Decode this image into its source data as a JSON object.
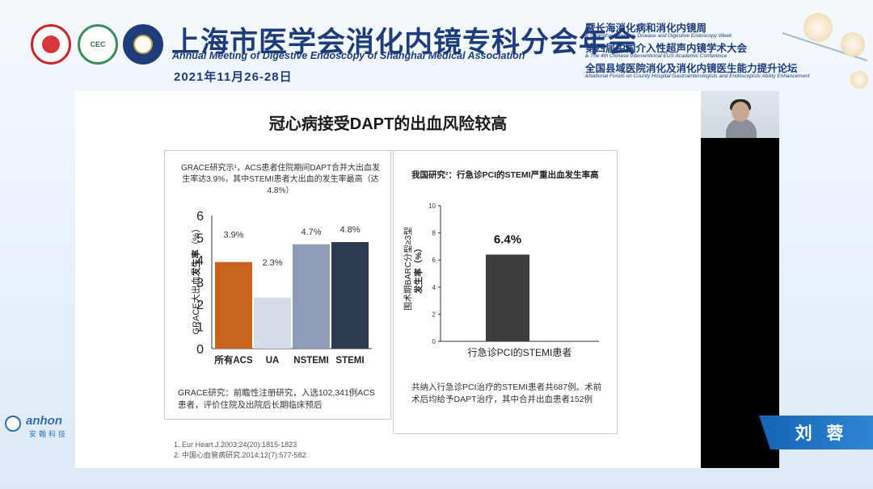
{
  "header": {
    "title_cn": "上海市医学会消化内镜专科分会年会",
    "title_en": "Annual Meeting of Digestive Endoscopy of Shanghai Medical Association",
    "date": "2021年11月26-28日",
    "logo2_text": "CEC",
    "right_lines": [
      {
        "text": "暨长海消化病和消化内镜周",
        "style": "big"
      },
      {
        "text": "& Changhai Digestive Disease and Digestive Endoscopy Week",
        "style": "small"
      },
      {
        "text": "第四届中国介入性超声内镜学术大会",
        "style": "big"
      },
      {
        "text": "& The 4th Chinese Interventional EUS Academic Conference",
        "style": "small"
      },
      {
        "text": "全国县域医院消化及消化内镜医生能力提升论坛",
        "style": "big"
      },
      {
        "text": "&National Forum on County Hospital Gastroenterologists and Endoscopists Ability Enhancement",
        "style": "small"
      }
    ]
  },
  "slide": {
    "title": "冠心病接受DAPT的出血风险较高",
    "left_panel": {
      "intro": "GRACE研究示¹，ACS患者住院期间DAPT合并大出血发生率达3.9%，其中STEMI患者大出血的发生率最高（达4.8%）",
      "footnote": "GRACE研究：前瞻性注册研究，入选102,341例ACS患者，评价住院及出院后长期临床预后"
    },
    "right_panel": {
      "heading": "我国研究²：行急诊PCI的STEMI严重出血发生率高",
      "footnote": "共纳入行急诊PCI治疗的STEMI患者共687例。术前术后均给予DAPT治疗，其中合并出血患者152例"
    },
    "references": [
      "1.   Eur Heart J.2003;24(20):1815-1823",
      "2.   中国心血管病研究.2014;12(7):577-582"
    ]
  },
  "chart_data": [
    {
      "type": "bar",
      "categories": [
        "所有ACS",
        "UA",
        "NSTEMI",
        "STEMI"
      ],
      "values": [
        3.9,
        2.3,
        4.7,
        4.8
      ],
      "value_labels": [
        "3.9%",
        "2.3%",
        "4.7%",
        "4.8%"
      ],
      "colors": [
        "#c8621c",
        "#d6dce6",
        "#8e9db5",
        "#2e3a52"
      ],
      "ylabel_plain": "GRACE大出血",
      "ylabel_bold": "发生率",
      "ylabel_unit": "（%）",
      "ylim": [
        0,
        6
      ],
      "yticks": [
        0,
        1,
        2,
        3,
        4,
        5,
        6
      ],
      "grid": false
    },
    {
      "type": "bar",
      "categories": [
        "行急诊PCI的STEMI患者"
      ],
      "values": [
        6.4
      ],
      "value_labels": [
        "6.4%"
      ],
      "colors": [
        "#3d3d3d"
      ],
      "ylabel_line1": "围术期BARC分型≥3型",
      "ylabel_line2": "发生率（%）",
      "ylim": [
        0,
        10
      ],
      "yticks": [
        0,
        2,
        4,
        6,
        8,
        10
      ],
      "grid": false
    }
  ],
  "presenter": {
    "name": "刘 蓉"
  },
  "sponsor": {
    "brand": "anhon",
    "sub": "安翰科技"
  }
}
